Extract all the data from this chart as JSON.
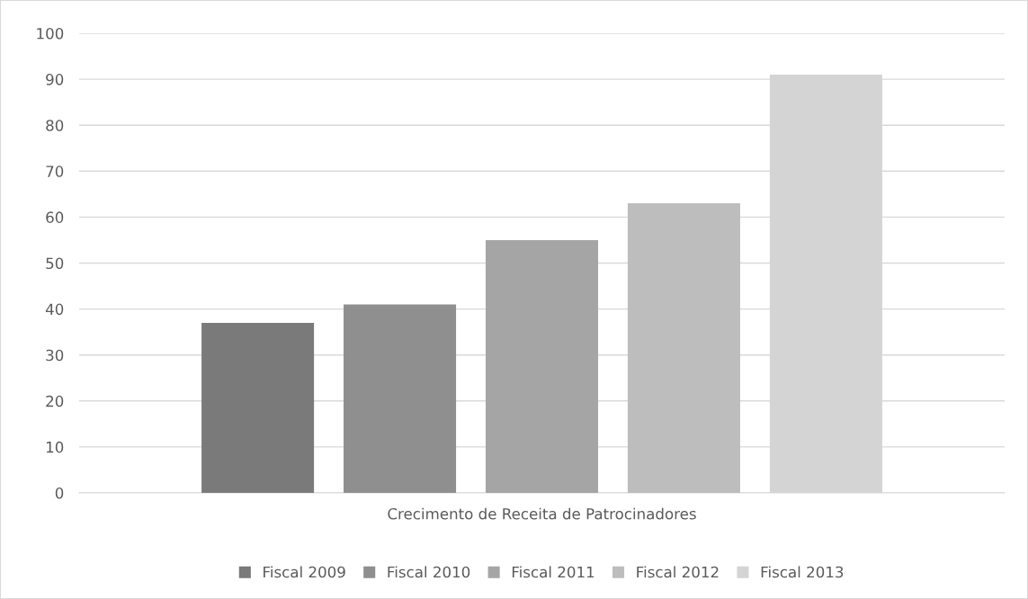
{
  "chart_data": {
    "type": "bar",
    "categories": [
      "Crecimento de Receita de Patrocinadores"
    ],
    "series": [
      {
        "name": "Fiscal 2009",
        "color": "#7a7a7a",
        "values": [
          37
        ]
      },
      {
        "name": "Fiscal 2010",
        "color": "#8f8f8f",
        "values": [
          41
        ]
      },
      {
        "name": "Fiscal 2011",
        "color": "#a5a5a5",
        "values": [
          55
        ]
      },
      {
        "name": "Fiscal 2012",
        "color": "#bdbdbd",
        "values": [
          63
        ]
      },
      {
        "name": "Fiscal 2013",
        "color": "#d4d4d4",
        "values": [
          91
        ]
      }
    ],
    "ylim": [
      0,
      100
    ],
    "yticks": [
      0,
      10,
      20,
      30,
      40,
      50,
      60,
      70,
      80,
      90,
      100
    ],
    "grid": "y",
    "legend": "bottom"
  }
}
